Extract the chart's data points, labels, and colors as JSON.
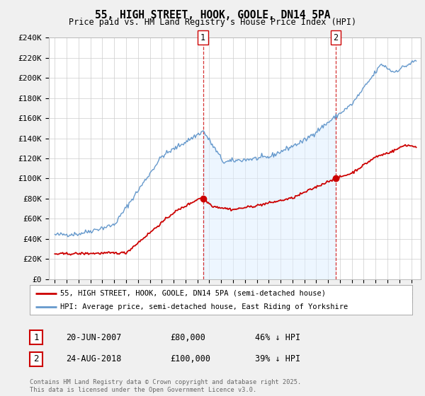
{
  "title": "55, HIGH STREET, HOOK, GOOLE, DN14 5PA",
  "subtitle": "Price paid vs. HM Land Registry's House Price Index (HPI)",
  "legend_line1": "55, HIGH STREET, HOOK, GOOLE, DN14 5PA (semi-detached house)",
  "legend_line2": "HPI: Average price, semi-detached house, East Riding of Yorkshire",
  "footnote": "Contains HM Land Registry data © Crown copyright and database right 2025.\nThis data is licensed under the Open Government Licence v3.0.",
  "annotation1_date": "20-JUN-2007",
  "annotation1_price": "£80,000",
  "annotation1_hpi": "46% ↓ HPI",
  "annotation2_date": "24-AUG-2018",
  "annotation2_price": "£100,000",
  "annotation2_hpi": "39% ↓ HPI",
  "red_color": "#cc0000",
  "blue_color": "#6699cc",
  "blue_fill_color": "#ddeeff",
  "background_color": "#f0f0f0",
  "plot_bg_color": "#ffffff",
  "ylim": [
    0,
    240000
  ],
  "ytick_values": [
    0,
    20000,
    40000,
    60000,
    80000,
    100000,
    120000,
    140000,
    160000,
    180000,
    200000,
    220000,
    240000
  ],
  "ytick_labels": [
    "£0",
    "£20K",
    "£40K",
    "£60K",
    "£80K",
    "£100K",
    "£120K",
    "£140K",
    "£160K",
    "£180K",
    "£200K",
    "£220K",
    "£240K"
  ],
  "xlim_start": 1994.5,
  "xlim_end": 2025.8,
  "trans1_x": 2007.47,
  "trans1_y": 80000,
  "trans2_x": 2018.65,
  "trans2_y": 100000
}
